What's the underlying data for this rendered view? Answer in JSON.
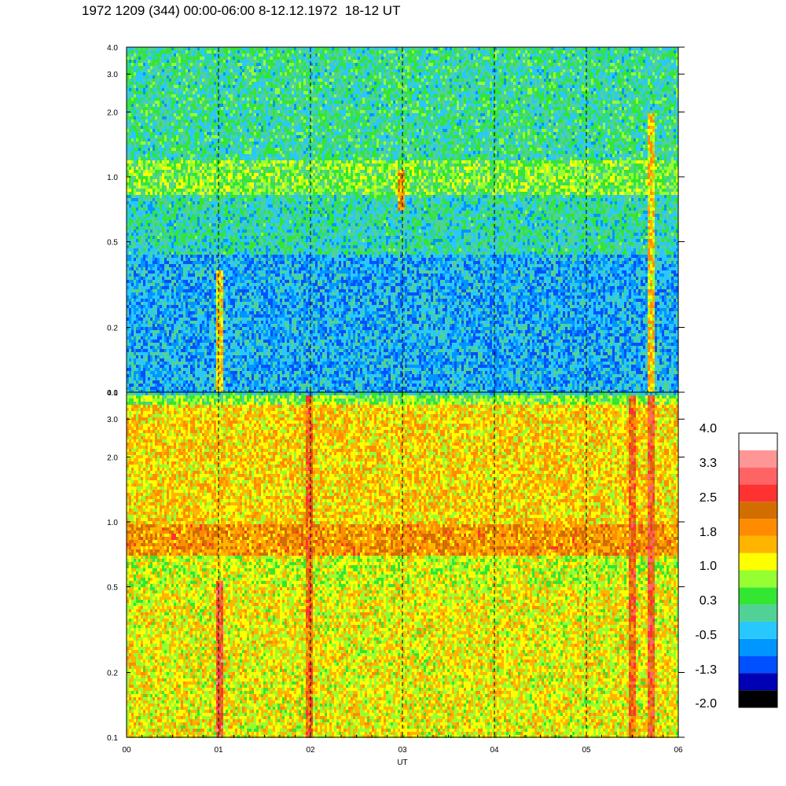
{
  "title": "1972 1209 (344) 00:00-06:00 8-12.12.1972  18-12 UT",
  "chart_data": [
    {
      "type": "heatmap",
      "panel": "top",
      "x": {
        "label": "",
        "ticks": [
          "00",
          "01",
          "02",
          "03",
          "04",
          "05",
          "06"
        ],
        "range": [
          0,
          6
        ]
      },
      "y": {
        "scale": "log",
        "range": [
          0.1,
          4.0
        ],
        "ticks": [
          0.1,
          0.2,
          0.5,
          1.0,
          2.0,
          3.0,
          4.0
        ],
        "tick_labels": [
          "0.1",
          "0.2",
          "0.5",
          "1.0",
          "2.0",
          "3.0",
          "4.0"
        ]
      },
      "grid": "vertical dashed at each hour",
      "bands": [
        {
          "y_range": [
            0.1,
            0.45
          ],
          "level": -0.5
        },
        {
          "y_range": [
            0.45,
            0.85
          ],
          "level": 0.0
        },
        {
          "y_range": [
            0.85,
            1.2
          ],
          "level": 0.6
        },
        {
          "y_range": [
            1.2,
            4.0
          ],
          "level": 0.1
        }
      ],
      "bursts": [
        {
          "x": 1.0,
          "y_range": [
            0.1,
            0.38
          ],
          "level": 1.4
        },
        {
          "x": 2.97,
          "y_range": [
            0.7,
            1.1
          ],
          "level": 1.8
        },
        {
          "x": 5.7,
          "y_range": [
            0.1,
            2.0
          ],
          "level": 1.4
        }
      ]
    },
    {
      "type": "heatmap",
      "panel": "bottom",
      "x": {
        "label": "UT",
        "ticks": [
          "00",
          "01",
          "02",
          "03",
          "04",
          "05",
          "06"
        ],
        "range": [
          0,
          6
        ]
      },
      "y": {
        "scale": "log",
        "range": [
          0.1,
          4.0
        ],
        "ticks": [
          0.1,
          0.2,
          0.5,
          1.0,
          2.0,
          3.0,
          4.0
        ],
        "tick_labels": [
          "0.1",
          "0.2",
          "0.5",
          "1.0",
          "2.0",
          "3.0",
          "4.0"
        ]
      },
      "grid": "vertical dashed at each hour",
      "bands": [
        {
          "y_range": [
            0.1,
            0.5
          ],
          "level": 1.2
        },
        {
          "y_range": [
            0.5,
            0.7
          ],
          "level": 1.0
        },
        {
          "y_range": [
            0.7,
            1.0
          ],
          "level": 1.9
        },
        {
          "y_range": [
            1.0,
            3.5
          ],
          "level": 1.4
        },
        {
          "y_range": [
            3.5,
            4.0
          ],
          "level": 0.7
        }
      ],
      "bursts": [
        {
          "x": 1.0,
          "y_range": [
            0.1,
            0.55
          ],
          "level": 2.7
        },
        {
          "x": 1.98,
          "y_range": [
            0.1,
            4.0
          ],
          "level": 2.3
        },
        {
          "x": 5.48,
          "y_range": [
            0.1,
            4.0
          ],
          "level": 2.3
        },
        {
          "x": 5.7,
          "y_range": [
            0.1,
            4.0
          ],
          "level": 2.6
        }
      ]
    }
  ],
  "colorbar": {
    "labels": [
      "4.0",
      "3.3",
      "2.5",
      "1.8",
      "1.0",
      "0.3",
      "-0.5",
      "-1.3",
      "-2.0"
    ],
    "min": -2.0,
    "max": 4.0,
    "colors": [
      "#000000",
      "#0000b4",
      "#0050ff",
      "#0096ff",
      "#28c8ff",
      "#50d296",
      "#32e632",
      "#96ff32",
      "#ffff00",
      "#ffb400",
      "#ff8c00",
      "#d26e00",
      "#ff3232",
      "#ff6464",
      "#ff9696",
      "#ffffff"
    ]
  }
}
